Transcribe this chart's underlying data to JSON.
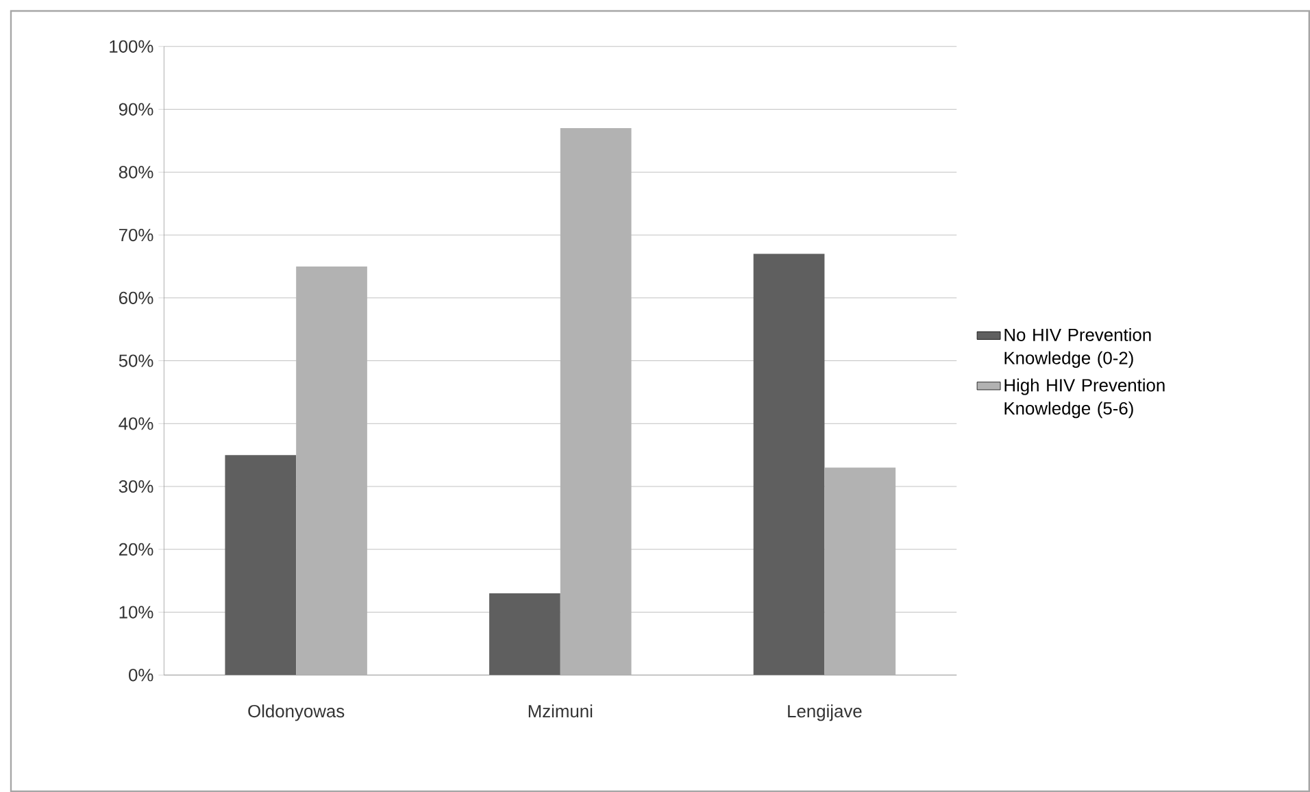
{
  "chart_data": {
    "type": "bar",
    "categories": [
      "Oldonyowas",
      "Mzimuni",
      "Lengijave"
    ],
    "series": [
      {
        "name": "No HIV Prevention Knowledge (0-2)",
        "color": "#5f5f5f",
        "values": [
          35,
          13,
          67
        ]
      },
      {
        "name": "High HIV Prevention Knowledge (5-6)",
        "color": "#b2b2b2",
        "values": [
          65,
          87,
          33
        ]
      }
    ],
    "ylim": [
      0,
      100
    ],
    "yticks": [
      {
        "value": 0,
        "label": "0%"
      },
      {
        "value": 10,
        "label": "10%"
      },
      {
        "value": 20,
        "label": "20%"
      },
      {
        "value": 30,
        "label": "30%"
      },
      {
        "value": 40,
        "label": "40%"
      },
      {
        "value": 50,
        "label": "50%"
      },
      {
        "value": 60,
        "label": "60%"
      },
      {
        "value": 70,
        "label": "70%"
      },
      {
        "value": 80,
        "label": "80%"
      },
      {
        "value": 90,
        "label": "90%"
      },
      {
        "value": 100,
        "label": "100%"
      }
    ],
    "grid": "y",
    "legend": "right"
  }
}
